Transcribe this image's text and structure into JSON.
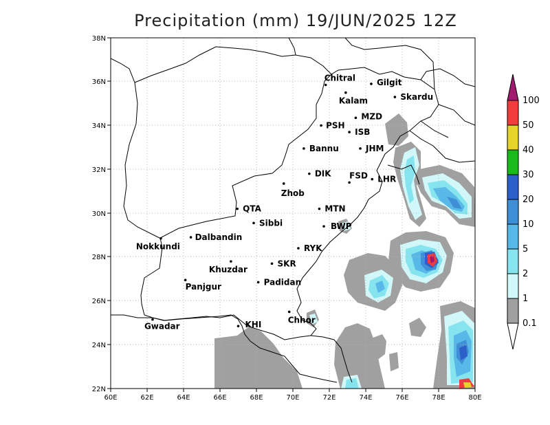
{
  "title": "Precipitation (mm) 19/JUN/2025 12Z",
  "x_ticks": [
    "60E",
    "62E",
    "64E",
    "66E",
    "68E",
    "70E",
    "72E",
    "74E",
    "76E",
    "78E",
    "80E"
  ],
  "y_ticks": [
    "22N",
    "24N",
    "26N",
    "28N",
    "30N",
    "32N",
    "34N",
    "36N",
    "38N"
  ],
  "cities": [
    {
      "name": "Chitral",
      "lon": 71.8,
      "lat": 35.85
    },
    {
      "name": "Gilgit",
      "lon": 74.3,
      "lat": 35.9
    },
    {
      "name": "Kalam",
      "lon": 72.9,
      "lat": 35.5
    },
    {
      "name": "Skardu",
      "lon": 75.6,
      "lat": 35.3
    },
    {
      "name": "MZD",
      "lon": 73.45,
      "lat": 34.35
    },
    {
      "name": "PSH",
      "lon": 71.55,
      "lat": 34.0
    },
    {
      "name": "ISB",
      "lon": 73.1,
      "lat": 33.7
    },
    {
      "name": "JHM",
      "lon": 73.7,
      "lat": 32.95
    },
    {
      "name": "Bannu",
      "lon": 70.6,
      "lat": 32.95
    },
    {
      "name": "DIK",
      "lon": 70.9,
      "lat": 31.8
    },
    {
      "name": "FSD",
      "lon": 73.1,
      "lat": 31.4
    },
    {
      "name": "LHR",
      "lon": 74.35,
      "lat": 31.55
    },
    {
      "name": "Zhob",
      "lon": 69.5,
      "lat": 31.35
    },
    {
      "name": "QTA",
      "lon": 66.95,
      "lat": 30.2
    },
    {
      "name": "MTN",
      "lon": 71.45,
      "lat": 30.2
    },
    {
      "name": "Sibbi",
      "lon": 67.85,
      "lat": 29.55
    },
    {
      "name": "BWP",
      "lon": 71.7,
      "lat": 29.4
    },
    {
      "name": "Dalbandin",
      "lon": 64.4,
      "lat": 28.9
    },
    {
      "name": "Nokkundi",
      "lon": 62.75,
      "lat": 28.85
    },
    {
      "name": "RYK",
      "lon": 70.3,
      "lat": 28.4
    },
    {
      "name": "Khuzdar",
      "lon": 66.6,
      "lat": 27.8
    },
    {
      "name": "SKR",
      "lon": 68.85,
      "lat": 27.7
    },
    {
      "name": "Padidan",
      "lon": 68.1,
      "lat": 26.85
    },
    {
      "name": "Panjgur",
      "lon": 64.1,
      "lat": 26.95
    },
    {
      "name": "Chhor",
      "lon": 69.8,
      "lat": 25.5
    },
    {
      "name": "Gwadar",
      "lon": 62.3,
      "lat": 25.15
    },
    {
      "name": "KHI",
      "lon": 67.0,
      "lat": 24.85
    }
  ],
  "colorbar": {
    "levels": [
      "0.1",
      "1",
      "2",
      "5",
      "10",
      "20",
      "30",
      "40",
      "50",
      "100"
    ],
    "colors": [
      "#a0a0a0",
      "#d2f7f9",
      "#86e4ef",
      "#58b8e8",
      "#3f8fd6",
      "#2c5fc8",
      "#1aba1a",
      "#e6d42a",
      "#f03c3c",
      "#a01a6e"
    ]
  }
}
